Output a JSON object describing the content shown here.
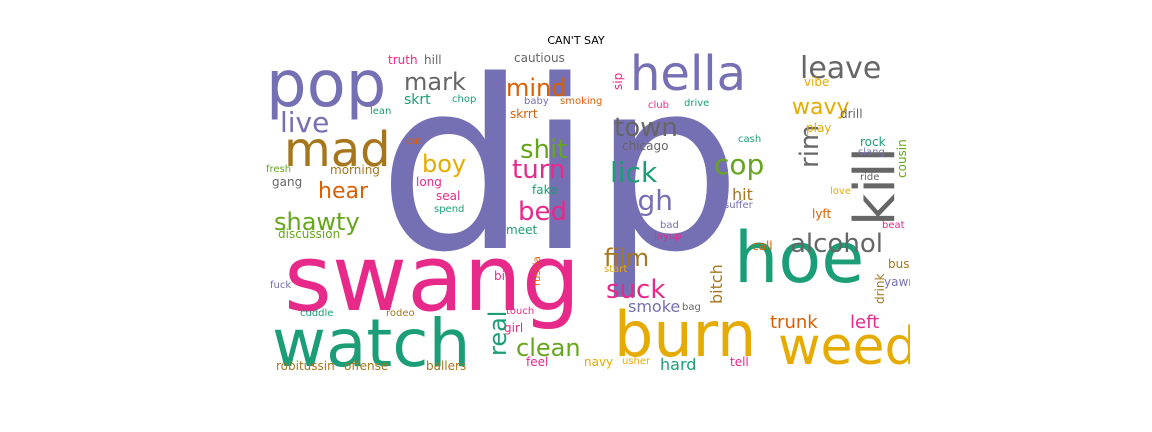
{
  "chart_data": {
    "type": "wordcloud",
    "title": "CAN'T SAY",
    "colors": {
      "purple": "#7570b3",
      "pink": "#e7298a",
      "green": "#1b9e77",
      "orange": "#d95f02",
      "gold": "#e6ab02",
      "lime": "#66a61e",
      "brown": "#a6761d",
      "gray": "#666666"
    },
    "words": [
      {
        "text": "dip",
        "color": "purple"
      },
      {
        "text": "swang",
        "color": "pink"
      },
      {
        "text": "watch",
        "color": "green"
      },
      {
        "text": "hoe",
        "color": "green"
      },
      {
        "text": "burn",
        "color": "gold"
      },
      {
        "text": "weed",
        "color": "gold"
      },
      {
        "text": "pop",
        "color": "purple"
      },
      {
        "text": "hella",
        "color": "purple"
      },
      {
        "text": "mad",
        "color": "brown"
      },
      {
        "text": "kill",
        "color": "gray"
      },
      {
        "text": "leave",
        "color": "gray"
      },
      {
        "text": "live",
        "color": "purple"
      },
      {
        "text": "mark",
        "color": "gray"
      },
      {
        "text": "mind",
        "color": "orange"
      },
      {
        "text": "town",
        "color": "gray"
      },
      {
        "text": "shit",
        "color": "lime"
      },
      {
        "text": "turn",
        "color": "pink"
      },
      {
        "text": "lick",
        "color": "green"
      },
      {
        "text": "cop",
        "color": "lime"
      },
      {
        "text": "boy",
        "color": "gold"
      },
      {
        "text": "hear",
        "color": "orange"
      },
      {
        "text": "bed",
        "color": "pink"
      },
      {
        "text": "high",
        "color": "purple"
      },
      {
        "text": "shawty",
        "color": "lime"
      },
      {
        "text": "alcohol",
        "color": "gray"
      },
      {
        "text": "film",
        "color": "brown"
      },
      {
        "text": "suck",
        "color": "pink"
      },
      {
        "text": "clean",
        "color": "lime"
      },
      {
        "text": "real",
        "color": "green"
      },
      {
        "text": "wavy",
        "color": "gold"
      },
      {
        "text": "rim",
        "color": "gray"
      },
      {
        "text": "trunk",
        "color": "orange"
      },
      {
        "text": "left",
        "color": "pink"
      },
      {
        "text": "skrt",
        "color": "green"
      },
      {
        "text": "hit",
        "color": "brown"
      },
      {
        "text": "smoke",
        "color": "purple"
      },
      {
        "text": "bitch",
        "color": "brown"
      },
      {
        "text": "hard",
        "color": "green"
      },
      {
        "text": "truth",
        "color": "pink"
      },
      {
        "text": "hill",
        "color": "gray"
      },
      {
        "text": "cautious",
        "color": "gray"
      },
      {
        "text": "sip",
        "color": "pink"
      },
      {
        "text": "vibe",
        "color": "gold"
      },
      {
        "text": "chop",
        "color": "green"
      },
      {
        "text": "lean",
        "color": "green"
      },
      {
        "text": "baby",
        "color": "purple"
      },
      {
        "text": "smoking",
        "color": "orange"
      },
      {
        "text": "club",
        "color": "pink"
      },
      {
        "text": "drive",
        "color": "green"
      },
      {
        "text": "drill",
        "color": "gray"
      },
      {
        "text": "skrrt",
        "color": "orange"
      },
      {
        "text": "play",
        "color": "gold"
      },
      {
        "text": "cousin",
        "color": "lime"
      },
      {
        "text": "cut",
        "color": "orange"
      },
      {
        "text": "cash",
        "color": "green"
      },
      {
        "text": "rock",
        "color": "green"
      },
      {
        "text": "chicago",
        "color": "gray"
      },
      {
        "text": "slang",
        "color": "purple"
      },
      {
        "text": "fresh",
        "color": "lime"
      },
      {
        "text": "morning",
        "color": "brown"
      },
      {
        "text": "ride",
        "color": "gray"
      },
      {
        "text": "gang",
        "color": "gray"
      },
      {
        "text": "long",
        "color": "pink"
      },
      {
        "text": "love",
        "color": "gold"
      },
      {
        "text": "fake",
        "color": "green"
      },
      {
        "text": "seal",
        "color": "pink"
      },
      {
        "text": "spend",
        "color": "green"
      },
      {
        "text": "suffer",
        "color": "purple"
      },
      {
        "text": "lyft",
        "color": "orange"
      },
      {
        "text": "discussion",
        "color": "lime"
      },
      {
        "text": "meet",
        "color": "green"
      },
      {
        "text": "bad",
        "color": "purple"
      },
      {
        "text": "layup",
        "color": "pink"
      },
      {
        "text": "beat",
        "color": "pink"
      },
      {
        "text": "call",
        "color": "orange"
      },
      {
        "text": "start",
        "color": "gold"
      },
      {
        "text": "russia",
        "color": "orange"
      },
      {
        "text": "big",
        "color": "pink"
      },
      {
        "text": "drink",
        "color": "brown"
      },
      {
        "text": "bust",
        "color": "brown"
      },
      {
        "text": "fuck",
        "color": "purple"
      },
      {
        "text": "yawn",
        "color": "purple"
      },
      {
        "text": "cuddle",
        "color": "green"
      },
      {
        "text": "rodeo",
        "color": "brown"
      },
      {
        "text": "touch",
        "color": "pink"
      },
      {
        "text": "bag",
        "color": "gray"
      },
      {
        "text": "girl",
        "color": "pink"
      },
      {
        "text": "robitussin",
        "color": "brown"
      },
      {
        "text": "offense",
        "color": "brown"
      },
      {
        "text": "ballers",
        "color": "brown"
      },
      {
        "text": "feel",
        "color": "pink"
      },
      {
        "text": "navy",
        "color": "gold"
      },
      {
        "text": "usher",
        "color": "gold"
      },
      {
        "text": "tell",
        "color": "pink"
      }
    ]
  }
}
